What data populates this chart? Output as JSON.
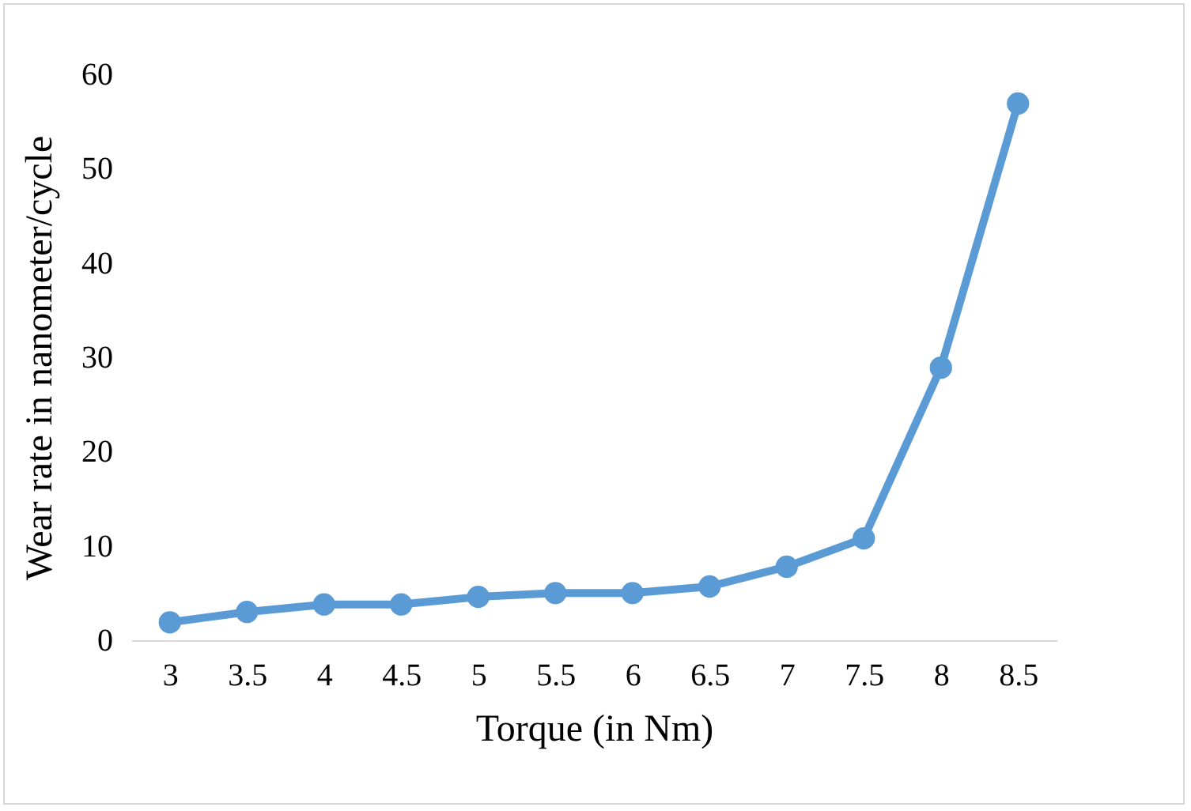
{
  "chart_data": {
    "type": "line",
    "xlabel": "Torque (in Nm)",
    "ylabel": "Wear rate in nanometer/cycle",
    "categories": [
      "3",
      "3.5",
      "4",
      "4.5",
      "5",
      "5.5",
      "6",
      "6.5",
      "7",
      "7.5",
      "8",
      "8.5"
    ],
    "series": [
      {
        "color": "#5b9bd5",
        "values": [
          1.9,
          3.0,
          3.8,
          3.8,
          4.6,
          5.0,
          5.0,
          5.7,
          7.8,
          10.8,
          28.9,
          56.9
        ]
      }
    ],
    "ylim": [
      0,
      60
    ],
    "yticks": [
      0,
      10,
      20,
      30,
      40,
      50,
      60
    ],
    "grid": false,
    "legend": false,
    "marker": "circle",
    "line_style": "solid"
  }
}
